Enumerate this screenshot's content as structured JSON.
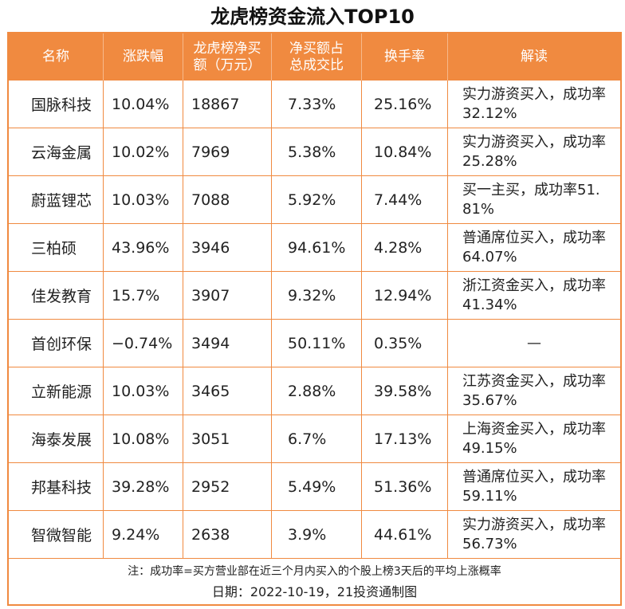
{
  "title": "龙虎榜资金流入TOP10",
  "header": {
    "name": "名称",
    "change": "涨跌幅",
    "net_buy_l1": "龙虎榜净买",
    "net_buy_l2": "额（万元）",
    "ratio_l1": "净买额占",
    "ratio_l2": "总成交比",
    "turnover": "换手率",
    "note": "解读"
  },
  "rows": [
    {
      "name": "国脉科技",
      "change": "10.04%",
      "net_buy": "18867",
      "ratio": "7.33%",
      "turnover": "25.16%",
      "note": "实力游资买入，成功率32.12%"
    },
    {
      "name": "云海金属",
      "change": "10.02%",
      "net_buy": "7969",
      "ratio": "5.38%",
      "turnover": "10.84%",
      "note": "实力游资买入，成功率25.28%"
    },
    {
      "name": "蔚蓝锂芯",
      "change": "10.03%",
      "net_buy": "7088",
      "ratio": "5.92%",
      "turnover": "7.44%",
      "note": "买一主买，成功率51.81%"
    },
    {
      "name": "三柏硕",
      "change": "43.96%",
      "net_buy": "3946",
      "ratio": "94.61%",
      "turnover": "4.28%",
      "note": "普通席位买入，成功率64.07%"
    },
    {
      "name": "佳发教育",
      "change": "15.7%",
      "net_buy": "3907",
      "ratio": "9.32%",
      "turnover": "12.94%",
      "note": "浙江资金买入，成功率41.34%"
    },
    {
      "name": "首创环保",
      "change": "−0.74%",
      "net_buy": "3494",
      "ratio": "50.11%",
      "turnover": "0.35%",
      "note": "—"
    },
    {
      "name": "立新能源",
      "change": "10.03%",
      "net_buy": "3465",
      "ratio": "2.88%",
      "turnover": "39.58%",
      "note": "江苏资金买入，成功率35.67%"
    },
    {
      "name": "海泰发展",
      "change": "10.08%",
      "net_buy": "3051",
      "ratio": "6.7%",
      "turnover": "17.13%",
      "note": "上海资金买入，成功率49.15%"
    },
    {
      "name": "邦基科技",
      "change": "39.28%",
      "net_buy": "2952",
      "ratio": "5.49%",
      "turnover": "51.36%",
      "note": "普通席位买入，成功率59.11%"
    },
    {
      "name": "智微智能",
      "change": "9.24%",
      "net_buy": "2638",
      "ratio": "3.9%",
      "turnover": "44.61%",
      "note": "实力游资买入，成功率56.73%"
    }
  ],
  "footnote": "注：成功率=买方营业部在近三个月内买入的个股上榜3天后的平均上涨概率",
  "credit": "日期：2022-10-19，21投资通制图",
  "colors": {
    "accent": "#f08a40"
  }
}
